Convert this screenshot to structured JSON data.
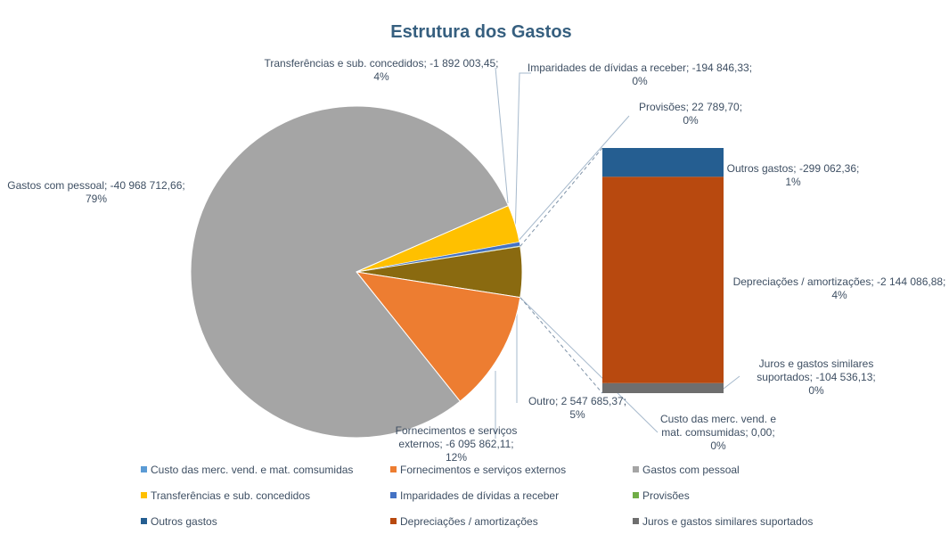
{
  "chart_data": {
    "type": "pie",
    "subtype": "bar-of-pie",
    "title": "Estrutura dos Gastos",
    "pie_slices": [
      {
        "key": "custo",
        "name": "Custo das merc. vend. e mat. comsumidas",
        "value": 0.0,
        "percent": 0,
        "label_lines": [
          "Custo das merc. vend. e",
          "mat. comsumidas; 0,00;",
          "0%"
        ],
        "color": "#5b9bd5"
      },
      {
        "key": "fornecimentos",
        "name": "Fornecimentos e serviços externos",
        "value": -6095862.11,
        "percent": 12,
        "label_lines": [
          "Fornecimentos e serviços",
          "externos; -6 095 862,11;",
          "12%"
        ],
        "color": "#ed7d31"
      },
      {
        "key": "pessoal",
        "name": "Gastos com pessoal",
        "value": -40968712.66,
        "percent": 79,
        "label_lines": [
          "Gastos com pessoal; -40 968 712,66;",
          "79%"
        ],
        "color": "#a5a5a5"
      },
      {
        "key": "transferencias",
        "name": "Transferências e sub. concedidos",
        "value": -1892003.45,
        "percent": 4,
        "label_lines": [
          "Transferências e sub. concedidos; -1 892 003,45;",
          "4%"
        ],
        "color": "#ffc000"
      },
      {
        "key": "imparidades",
        "name": "Imparidades de dívidas a receber",
        "value": -194846.33,
        "percent": 0,
        "label_lines": [
          "Imparidades de dívidas a receber; -194 846,33;",
          "0%"
        ],
        "color": "#4472c4"
      },
      {
        "key": "provisoes",
        "name": "Provisões",
        "value": 22789.7,
        "percent": 0,
        "label_lines": [
          "Provisões; 22 789,70;",
          "0%"
        ],
        "color": "#70ad47"
      },
      {
        "key": "outro",
        "name": "Outro",
        "value": 2547685.37,
        "percent": 5,
        "label_lines": [
          "Outro; 2 547 685,37;",
          "5%"
        ],
        "color": "#8a6a10"
      }
    ],
    "bar_segments": [
      {
        "key": "juros",
        "name": "Juros e gastos similares suportados",
        "value": -104536.13,
        "percent": 0,
        "label_lines": [
          "Juros e gastos similares",
          "suportados; -104 536,13;",
          "0%"
        ],
        "color": "#6e6e6e"
      },
      {
        "key": "depreciacoes",
        "name": "Depreciações / amortizações",
        "value": -2144086.88,
        "percent": 4,
        "label_lines": [
          "Depreciações / amortizações; -2 144 086,88;",
          "4%"
        ],
        "color": "#b8490f"
      },
      {
        "key": "outros_gastos",
        "name": "Outros gastos",
        "value": -299062.36,
        "percent": 1,
        "label_lines": [
          "Outros gastos; -299 062,36;",
          "1%"
        ],
        "color": "#255e91"
      }
    ],
    "legend": {
      "placement": "bottom",
      "entries": [
        {
          "name": "Custo das merc. vend. e mat. comsumidas",
          "color": "#5b9bd5"
        },
        {
          "name": "Fornecimentos e serviços externos",
          "color": "#ed7d31"
        },
        {
          "name": "Gastos com pessoal",
          "color": "#a5a5a5"
        },
        {
          "name": "Transferências e sub. concedidos",
          "color": "#ffc000"
        },
        {
          "name": "Imparidades de dívidas a receber",
          "color": "#4472c4"
        },
        {
          "name": "Provisões",
          "color": "#70ad47"
        },
        {
          "name": "Outros gastos",
          "color": "#255e91"
        },
        {
          "name": "Depreciações / amortizações",
          "color": "#b8490f"
        },
        {
          "name": "Juros e gastos similares suportados",
          "color": "#6e6e6e"
        }
      ]
    }
  }
}
